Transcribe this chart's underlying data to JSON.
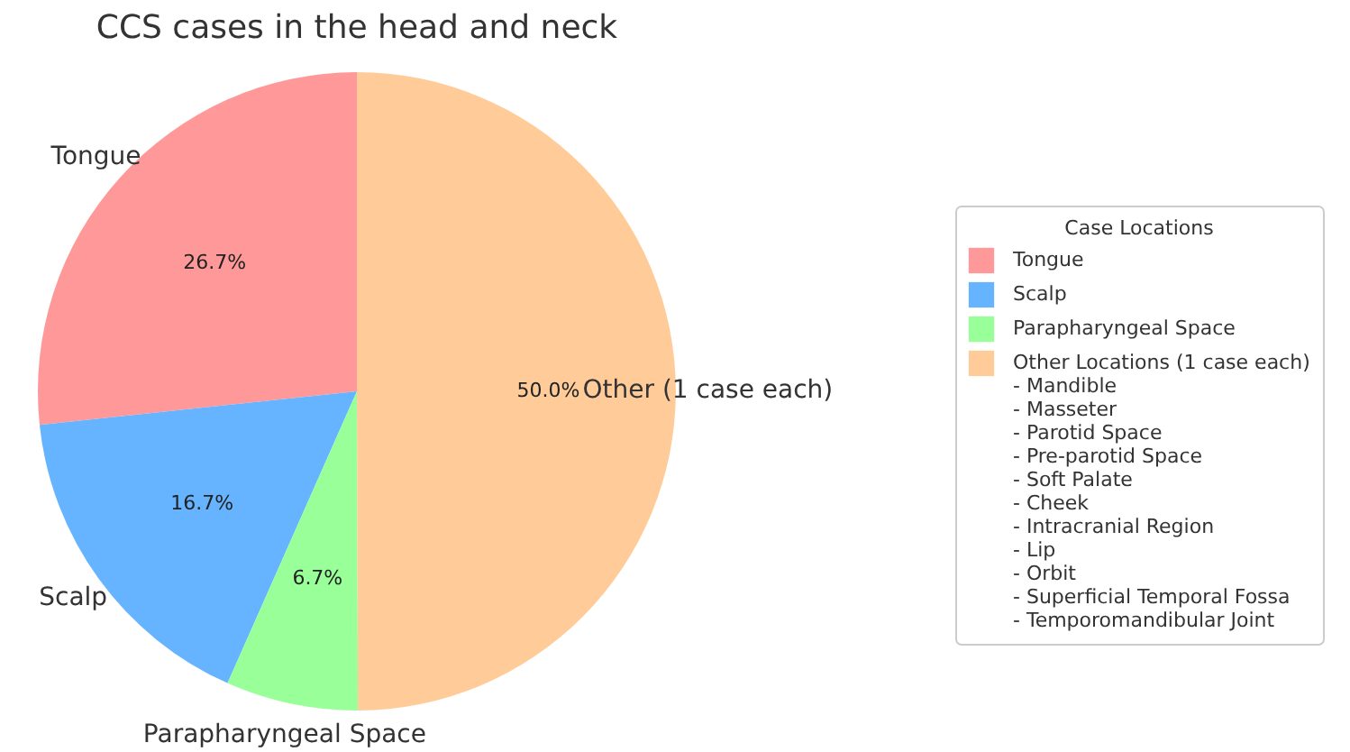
{
  "chart_data": {
    "type": "pie",
    "title": "CCS cases in the head and neck",
    "legend_title": "Case Locations",
    "legend": "right",
    "categories": [
      "Tongue",
      "Scalp",
      "Parapharyngeal Space",
      "Other (1 case each)"
    ],
    "values": [
      26.7,
      16.7,
      6.7,
      50.0
    ],
    "value_labels": [
      "26.7%",
      "16.7%",
      "6.7%",
      "50.0%"
    ],
    "colors": [
      "#ff9999",
      "#66b3ff",
      "#99ff99",
      "#ffcc99"
    ],
    "annotations": [
      "Other Locations (1 case each)\n- Mandible\n- Masseter\n- Parotid Space\n- Pre-parotid Space\n- Soft Palate\n- Cheek\n- Intracranial Region\n- Lip\n- Orbit\n- Superficial Temporal Fossa\n- Temporomandibular Joint"
    ]
  }
}
